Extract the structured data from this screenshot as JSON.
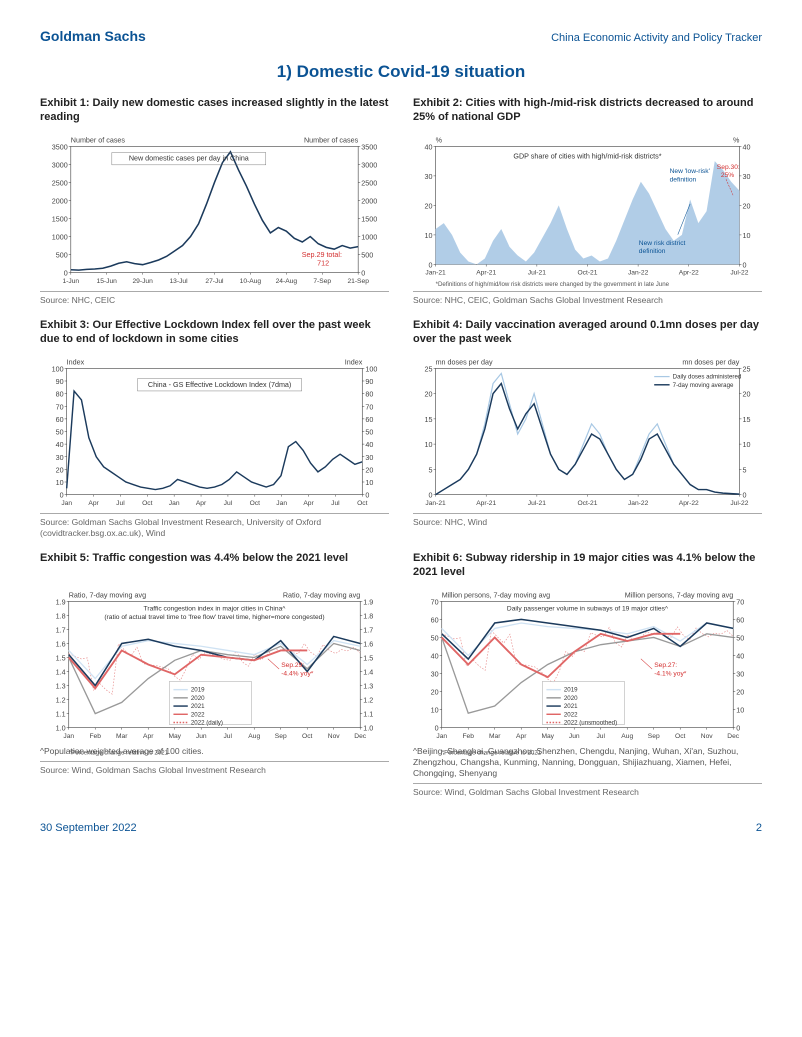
{
  "header": {
    "brand": "Goldman Sachs",
    "doc_title": "China Economic Activity and Policy Tracker"
  },
  "section_title": "1) Domestic Covid-19 situation",
  "footer": {
    "date": "30 September 2022",
    "page": "2"
  },
  "colors": {
    "primary": "#0b5394",
    "navy": "#1b3a5c",
    "light_blue": "#a8c8e4",
    "pale_blue": "#cfe2f3",
    "red": "#e06666",
    "red_dash": "#e06666",
    "grey": "#999999",
    "axis": "#666666",
    "callout_red": "#d32f2f"
  },
  "ex1": {
    "title": "Exhibit 1: Daily new domestic cases increased slightly in the latest reading",
    "y_label_left": "Number of cases",
    "y_label_right": "Number of cases",
    "series_label": "New domestic cases per day in China",
    "callout": "Sep.29 total:\n712",
    "ylim": [
      0,
      3500
    ],
    "ytick_step": 500,
    "xticks": [
      "1-Jun",
      "15-Jun",
      "29-Jun",
      "13-Jul",
      "27-Jul",
      "10-Aug",
      "24-Aug",
      "7-Sep",
      "21-Sep"
    ],
    "line_color": "#1b3a5c",
    "source": "Source: NHC, CEIC",
    "data": [
      80,
      70,
      90,
      100,
      120,
      180,
      260,
      300,
      250,
      220,
      280,
      350,
      450,
      600,
      750,
      1000,
      1350,
      1900,
      2500,
      3050,
      3350,
      2850,
      2400,
      1900,
      1450,
      1100,
      1250,
      1150,
      950,
      850,
      1000,
      800,
      700,
      650,
      750,
      680,
      720
    ]
  },
  "ex2": {
    "title": "Exhibit 2: Cities with high-/mid-risk districts decreased to around 25% of national GDP",
    "y_label_left": "%",
    "y_label_right": "%",
    "series_label": "GDP share of cities with high/mid-risk districts*",
    "ylim": [
      0,
      40
    ],
    "ytick_step": 10,
    "xticks": [
      "Jan-21",
      "Apr-21",
      "Jul-21",
      "Oct-21",
      "Jan-22",
      "Apr-22",
      "Jul-22"
    ],
    "area_color": "#a8c8e4",
    "callout1": "New risk district\ndefinition",
    "callout2": "New 'low-risk'\ndefinition",
    "callout3": "Sep.30:\n25%",
    "footnote": "*Definitions of high/mid/low risk districts were changed by the government in late June",
    "source": "Source: NHC, CEIC, Goldman Sachs Global Investment Research",
    "data": [
      12,
      14,
      10,
      4,
      1,
      0,
      2,
      8,
      12,
      6,
      3,
      1,
      4,
      9,
      14,
      20,
      12,
      5,
      2,
      3,
      1,
      2,
      8,
      15,
      22,
      28,
      24,
      18,
      12,
      8,
      10,
      22,
      14,
      18,
      35,
      32,
      28,
      25
    ]
  },
  "ex3": {
    "title": "Exhibit 3: Our Effective Lockdown Index fell over the past week due to end of lockdown in some cities",
    "y_label_left": "Index",
    "y_label_right": "Index",
    "series_label": "China - GS Effective Lockdown Index (7dma)",
    "ylim": [
      0,
      100
    ],
    "ytick_step": 10,
    "xticks": [
      "Jan",
      "Apr",
      "Jul",
      "Oct",
      "Jan",
      "Apr",
      "Jul",
      "Oct",
      "Jan",
      "Apr",
      "Jul",
      "Oct"
    ],
    "line_color": "#1b3a5c",
    "source": "Source: Goldman Sachs Global Investment Research, University of Oxford (covidtracker.bsg.ox.ac.uk), Wind",
    "data": [
      5,
      82,
      75,
      45,
      30,
      22,
      18,
      14,
      10,
      8,
      6,
      5,
      4,
      5,
      7,
      12,
      10,
      8,
      6,
      5,
      6,
      8,
      12,
      18,
      14,
      10,
      8,
      6,
      8,
      15,
      38,
      42,
      35,
      25,
      18,
      22,
      28,
      32,
      28,
      24,
      26
    ]
  },
  "ex4": {
    "title": "Exhibit 4: Daily vaccination averaged around 0.1mn doses per day over the past week",
    "y_label_left": "mn doses per day",
    "y_label_right": "mn doses per day",
    "legend1": "Daily doses administered",
    "legend2": "7-day moving average",
    "ylim": [
      0,
      25
    ],
    "ytick_step": 5,
    "xticks": [
      "Jan-21",
      "Apr-21",
      "Jul-21",
      "Oct-21",
      "Jan-22",
      "Apr-22",
      "Jul-22"
    ],
    "light_color": "#a8c8e4",
    "dark_color": "#1b3a5c",
    "source": "Source: NHC, Wind",
    "data_light": [
      0,
      1,
      2,
      3,
      5,
      8,
      14,
      22,
      24,
      18,
      12,
      15,
      20,
      14,
      8,
      5,
      4,
      6,
      10,
      14,
      12,
      8,
      5,
      3,
      4,
      8,
      12,
      14,
      10,
      6,
      4,
      2,
      1,
      1,
      0.5,
      0.3,
      0.2,
      0.1
    ],
    "data_dark": [
      0,
      1,
      2,
      3,
      5,
      8,
      13,
      20,
      22,
      17,
      13,
      16,
      18,
      13,
      8,
      5,
      4,
      6,
      9,
      12,
      11,
      8,
      5,
      3,
      4,
      7,
      11,
      12,
      9,
      6,
      4,
      2,
      1,
      1,
      0.5,
      0.3,
      0.2,
      0.1
    ]
  },
  "ex5": {
    "title": "Exhibit 5: Traffic congestion was 4.4% below the 2021 level",
    "y_label_left": "Ratio, 7-day moving avg",
    "y_label_right": "Ratio, 7-day moving avg",
    "series_label": "Traffic congestion index in major cities in China^\n(ratio of actual travel time to 'free flow' travel time, higher=more congested)",
    "ylim": [
      1.0,
      1.9
    ],
    "ytick_step": 0.1,
    "xticks": [
      "Jan",
      "Feb",
      "Mar",
      "Apr",
      "May",
      "Jun",
      "Jul",
      "Aug",
      "Sep",
      "Oct",
      "Nov",
      "Dec"
    ],
    "colors": {
      "2019": "#cfe2f3",
      "2020": "#999999",
      "2021": "#1b3a5c",
      "2022": "#e06666",
      "2022_daily": "#e06666"
    },
    "legend": [
      "2019",
      "2020",
      "2021",
      "2022",
      "2022 (daily)"
    ],
    "callout": "Sep.29:\n-4.4% yoy*",
    "footnote_star": "*Percentage change relative to 2021",
    "footnote_caret": "^Population weighted average of 100 cities.",
    "source": "Source: Wind, Goldman Sachs Global Investment Research",
    "d2019": [
      1.55,
      1.35,
      1.58,
      1.62,
      1.6,
      1.58,
      1.55,
      1.52,
      1.6,
      1.45,
      1.62,
      1.58
    ],
    "d2020": [
      1.5,
      1.1,
      1.18,
      1.35,
      1.48,
      1.55,
      1.52,
      1.5,
      1.58,
      1.42,
      1.6,
      1.55
    ],
    "d2021": [
      1.52,
      1.3,
      1.6,
      1.63,
      1.58,
      1.55,
      1.5,
      1.48,
      1.62,
      1.4,
      1.65,
      1.6
    ],
    "d2022": [
      1.5,
      1.28,
      1.55,
      1.45,
      1.38,
      1.52,
      1.5,
      1.48,
      1.55,
      1.55,
      1.55,
      1.55
    ]
  },
  "ex6": {
    "title": "Exhibit 6: Subway ridership in 19 major cities was 4.1% below the 2021 level",
    "y_label_left": "Million persons, 7-day moving avg",
    "y_label_right": "Million persons, 7-day moving avg",
    "series_label": "Daily passenger volume in subways of 19 major cities^",
    "ylim": [
      0,
      70
    ],
    "ytick_step": 10,
    "xticks": [
      "Jan",
      "Feb",
      "Mar",
      "Apr",
      "May",
      "Jun",
      "Jul",
      "Aug",
      "Sep",
      "Oct",
      "Nov",
      "Dec"
    ],
    "colors": {
      "2019": "#cfe2f3",
      "2020": "#999999",
      "2021": "#1b3a5c",
      "2022": "#e06666",
      "2022_un": "#e06666"
    },
    "legend": [
      "2019",
      "2020",
      "2021",
      "2022",
      "2022 (unsmoothed)"
    ],
    "callout": "Sep.27:\n-4.1% yoy*",
    "footnote_star": "*Percentage change relative to 2021",
    "footnote_caret": "^Beijing, Shanghai, Guangzhou, Shenzhen, Chengdu, Nanjing, Wuhan, Xi'an, Suzhou, Zhengzhou, Changsha, Kunming, Nanning, Dongguan, Shijiazhuang, Xiamen, Hefei, Chongqing, Shenyang",
    "source": "Source: Wind, Goldman Sachs Global Investment Research",
    "d2019": [
      55,
      40,
      55,
      58,
      56,
      55,
      54,
      52,
      56,
      48,
      58,
      55
    ],
    "d2020": [
      50,
      8,
      12,
      25,
      35,
      42,
      46,
      48,
      50,
      45,
      52,
      50
    ],
    "d2021": [
      52,
      38,
      58,
      60,
      58,
      56,
      54,
      50,
      55,
      45,
      58,
      55
    ],
    "d2022": [
      50,
      35,
      50,
      35,
      28,
      42,
      52,
      48,
      52,
      52,
      52,
      52
    ]
  }
}
